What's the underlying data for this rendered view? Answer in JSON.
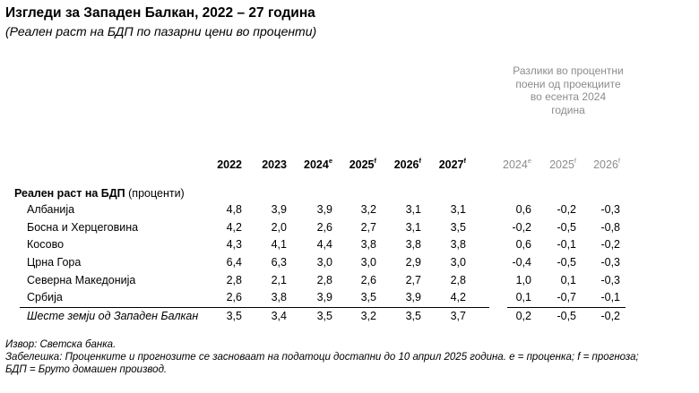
{
  "title": "Изгледи за Западен Балкан, 2022 – 27 година",
  "subtitle": "(Реален раст на БДП по пазарни цени во проценти)",
  "differences_note": "Разлики во процентни поени од проекциите во есента 2024 година",
  "columns": [
    {
      "year": "2022",
      "mark": "",
      "grey": false
    },
    {
      "year": "2023",
      "mark": "",
      "grey": false
    },
    {
      "year": "2024",
      "mark": "e",
      "grey": false
    },
    {
      "year": "2025",
      "mark": "f",
      "grey": false
    },
    {
      "year": "2026",
      "mark": "f",
      "grey": false
    },
    {
      "year": "2027",
      "mark": "f",
      "grey": false
    },
    {
      "year": "2024",
      "mark": "e",
      "grey": true
    },
    {
      "year": "2025",
      "mark": "f",
      "grey": true
    },
    {
      "year": "2026",
      "mark": "f",
      "grey": true
    }
  ],
  "section": {
    "bold": "Реален раст на БДП",
    "rest": " (проценти)"
  },
  "rows": [
    {
      "name": "Албанија",
      "values": [
        "4,8",
        "3,9",
        "3,9",
        "3,2",
        "3,1",
        "3,1",
        "0,6",
        "-0,2",
        "-0,3"
      ]
    },
    {
      "name": "Босна и Херцеговина",
      "values": [
        "4,2",
        "2,0",
        "2,6",
        "2,7",
        "3,1",
        "3,5",
        "-0,2",
        "-0,5",
        "-0,8"
      ]
    },
    {
      "name": "Косово",
      "values": [
        "4,3",
        "4,1",
        "4,4",
        "3,8",
        "3,8",
        "3,8",
        "0,6",
        "-0,1",
        "-0,2"
      ]
    },
    {
      "name": "Црна Гора",
      "values": [
        "6,4",
        "6,3",
        "3,0",
        "3,0",
        "2,9",
        "3,0",
        "-0,4",
        "-0,5",
        "-0,3"
      ]
    },
    {
      "name": "Северна Македонија",
      "values": [
        "2,8",
        "2,1",
        "2,8",
        "2,6",
        "2,7",
        "2,8",
        "1,0",
        "0,1",
        "-0,3"
      ]
    },
    {
      "name": "Србија",
      "values": [
        "2,6",
        "3,8",
        "3,9",
        "3,5",
        "3,9",
        "4,2",
        "0,1",
        "-0,7",
        "-0,1"
      ]
    }
  ],
  "total": {
    "name": "Шесте земји од Западен Балкан",
    "values": [
      "3,5",
      "3,4",
      "3,5",
      "3,2",
      "3,5",
      "3,7",
      "0,2",
      "-0,5",
      "-0,2"
    ]
  },
  "footer": {
    "source": "Извор: Светска банка.",
    "note_line1": "Забелешка: Проценките и прогнозите се засноваат на податоци достапни до 10 април 2025 година. e = проценка; f = прогноза;",
    "note_line2": "БДП = Бруто домашен производ."
  }
}
